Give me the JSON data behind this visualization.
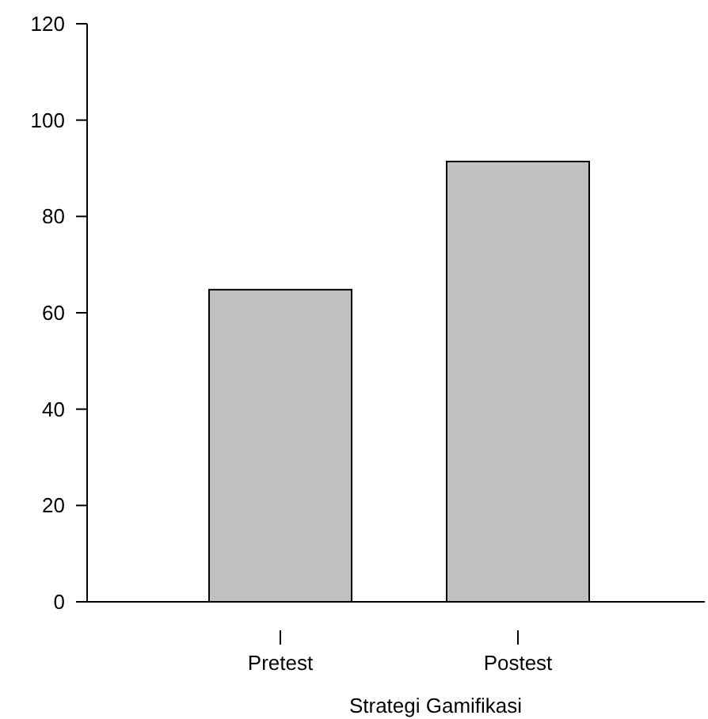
{
  "chart_data": {
    "type": "bar",
    "xlabel": "Strategi Gamifikasi",
    "categories": [
      "Pretest",
      "Postest"
    ],
    "values": [
      64.8,
      91.4
    ],
    "color": "#c0c0c0",
    "ylim": [
      0,
      120
    ],
    "yticks": [
      0,
      20,
      40,
      60,
      80,
      100,
      120
    ],
    "grid": false
  }
}
